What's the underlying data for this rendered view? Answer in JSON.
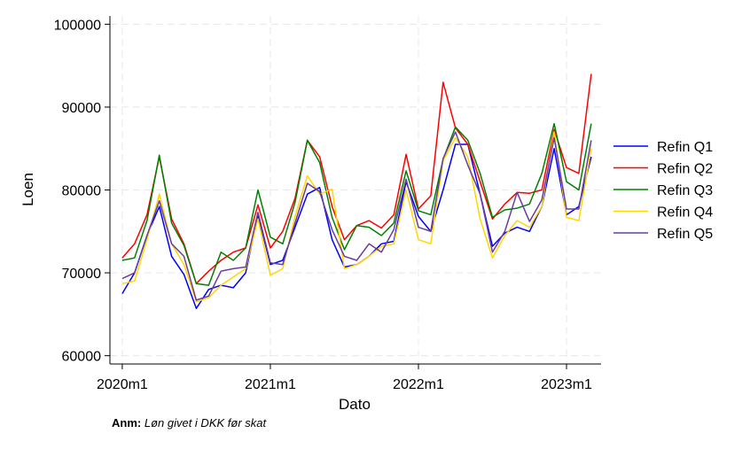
{
  "chart_data": {
    "type": "line",
    "title": "",
    "xlabel": "Dato",
    "ylabel": "Loen",
    "ylim": [
      59000,
      101000
    ],
    "yticks": [
      60000,
      70000,
      80000,
      90000,
      100000
    ],
    "xticks": [
      {
        "value": 0,
        "label": "2020m1"
      },
      {
        "value": 12,
        "label": "2021m1"
      },
      {
        "value": 24,
        "label": "2022m1"
      },
      {
        "value": 36,
        "label": "2023m1"
      }
    ],
    "xlim": [
      -1,
      38.8
    ],
    "grid": true,
    "legend_position": "right",
    "x": [
      0,
      1,
      2,
      3,
      4,
      5,
      6,
      7,
      8,
      9,
      10,
      11,
      12,
      13,
      14,
      15,
      16,
      17,
      18,
      19,
      20,
      21,
      22,
      23,
      24,
      25,
      26,
      27,
      28,
      29,
      30,
      31,
      32,
      33,
      34,
      35,
      36,
      37,
      38
    ],
    "series": [
      {
        "name": "Refin Q1",
        "color": "#0000ff",
        "values": [
          67500,
          70000,
          74500,
          78000,
          72000,
          69800,
          65700,
          68000,
          68500,
          68200,
          70000,
          77000,
          71000,
          71500,
          75500,
          79500,
          80300,
          74000,
          70700,
          71000,
          72000,
          73500,
          73800,
          81000,
          76800,
          75000,
          80000,
          85500,
          85500,
          79500,
          73200,
          74800,
          75500,
          75000,
          78000,
          85000,
          77000,
          78000,
          84000
        ]
      },
      {
        "name": "Refin Q2",
        "color": "#ff0000",
        "values": [
          71800,
          73500,
          77000,
          84000,
          76500,
          73500,
          68700,
          70200,
          71500,
          72500,
          73000,
          78200,
          73000,
          75000,
          79000,
          86000,
          84000,
          78000,
          74000,
          75700,
          76300,
          75400,
          77000,
          84300,
          77700,
          79300,
          93000,
          87500,
          85500,
          81000,
          76500,
          78300,
          79700,
          79600,
          80000,
          87300,
          82700,
          82000,
          94000
        ]
      },
      {
        "name": "Refin Q3",
        "color": "#008000",
        "values": [
          71500,
          71800,
          76300,
          84200,
          76000,
          73300,
          68700,
          68500,
          72500,
          71500,
          73000,
          80000,
          74300,
          73500,
          78500,
          86000,
          83300,
          76700,
          72800,
          75700,
          75500,
          74500,
          76000,
          82300,
          77500,
          77000,
          83700,
          87600,
          86000,
          82000,
          76700,
          77600,
          77800,
          78300,
          82000,
          88000,
          81000,
          80000,
          88000
        ]
      },
      {
        "name": "Refin Q4",
        "color": "#ffd700",
        "values": [
          68700,
          69000,
          74000,
          79500,
          73500,
          71000,
          66500,
          67000,
          68500,
          69500,
          70500,
          76500,
          69700,
          70500,
          76800,
          81700,
          79500,
          80100,
          70500,
          71000,
          72000,
          73200,
          73500,
          80000,
          74000,
          73500,
          83500,
          86300,
          84000,
          76500,
          71800,
          74500,
          76300,
          75500,
          78000,
          87000,
          76700,
          76300,
          85000
        ]
      },
      {
        "name": "Refin Q5",
        "color": "#6a3d9a",
        "values": [
          69300,
          70000,
          74500,
          78700,
          73500,
          72000,
          66700,
          67200,
          70200,
          70500,
          70700,
          77300,
          71200,
          71000,
          76000,
          80800,
          79800,
          75200,
          72000,
          71500,
          73500,
          72500,
          75200,
          81300,
          75500,
          75000,
          83800,
          87000,
          83000,
          79500,
          72500,
          75000,
          79700,
          76200,
          78800,
          86300,
          77700,
          77700,
          86000
        ]
      }
    ]
  },
  "note": {
    "label": "Anm:",
    "text": "Løn givet i DKK før skat"
  }
}
